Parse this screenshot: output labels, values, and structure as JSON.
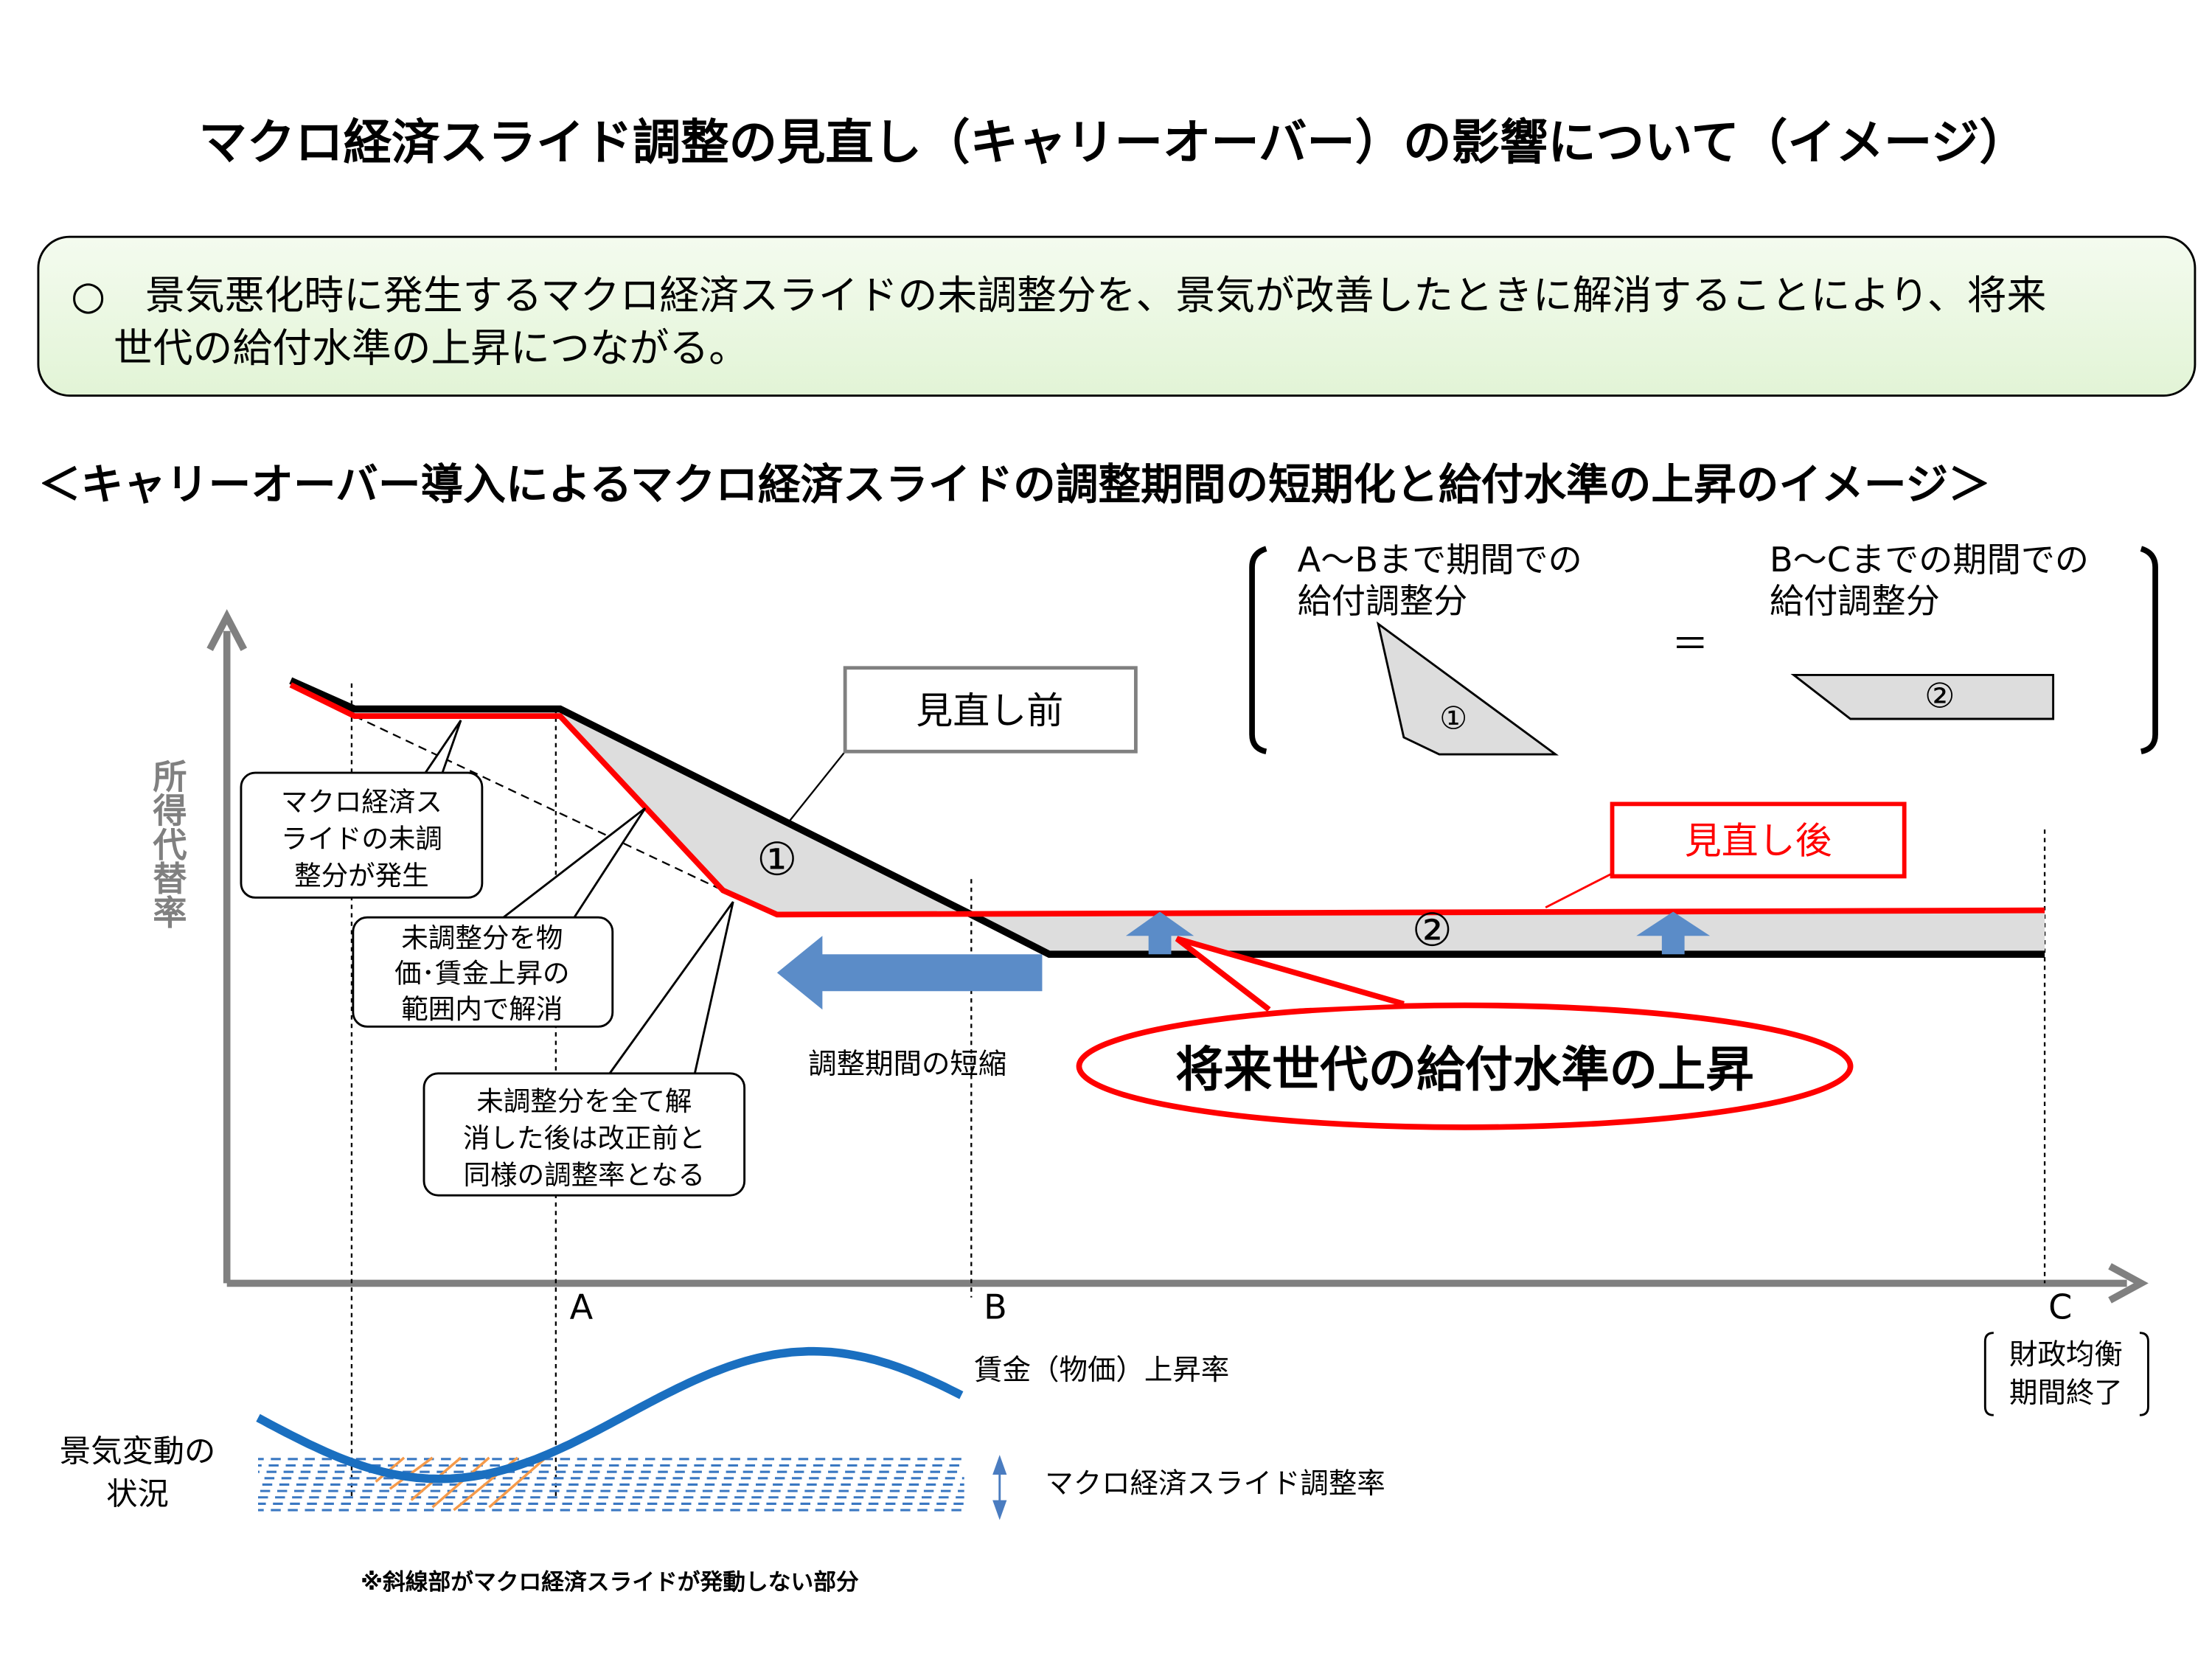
{
  "title": "マクロ経済スライド調整の見直し（キャリーオーバー）の影響について（イメージ）",
  "summary": {
    "bullet_icon": "circle-outline",
    "line1": "○　景気悪化時に発生するマクロ経済スライドの未調整分を、景気が改善したときに解消することにより、将来",
    "line2": "世代の給付水準の上昇につながる。"
  },
  "subtitle": "＜キャリーオーバー導入によるマクロ経済スライドの調整期間の短期化と給付水準の上昇のイメージ＞",
  "diagram": {
    "y_axis_label": "所得代替率",
    "x_points": [
      "A",
      "B",
      "C"
    ],
    "before_label": "見直し前",
    "after_label": "見直し後",
    "area1": "①",
    "area2": "②",
    "callouts": [
      [
        "マクロ経済ス",
        "ライドの未調",
        "整分が発生"
      ],
      [
        "未調整分を物",
        "価･賃金上昇の",
        "範囲内で解消"
      ],
      [
        "未調整分を全て解",
        "消した後は改正前と",
        "同様の調整率となる"
      ]
    ],
    "shortening_label": "調整期間の短縮",
    "highlight": "将来世代の給付水準の上昇",
    "fiscal_end": [
      "財政均衡",
      "期間終了"
    ],
    "colors": {
      "before": "#000000",
      "after": "#ff0000",
      "arrow": "#5b8cc8",
      "area": "#dddddd",
      "wave": "#1a6fc0",
      "hatch": "#f59a4a",
      "axis": "#808080"
    }
  },
  "equation": {
    "left_label": [
      "A～Bまで期間での",
      "給付調整分"
    ],
    "equals": "＝",
    "right_label": [
      "B～Cまでの期間での",
      "給付調整分"
    ],
    "left_mark": "①",
    "right_mark": "②"
  },
  "economy": {
    "label": [
      "景気変動の",
      "状況"
    ],
    "wage_label": "賃金（物価）上昇率",
    "slide_label": "マクロ経済スライド調整率",
    "footnote": "※斜線部がマクロ経済スライドが発動しない部分"
  }
}
